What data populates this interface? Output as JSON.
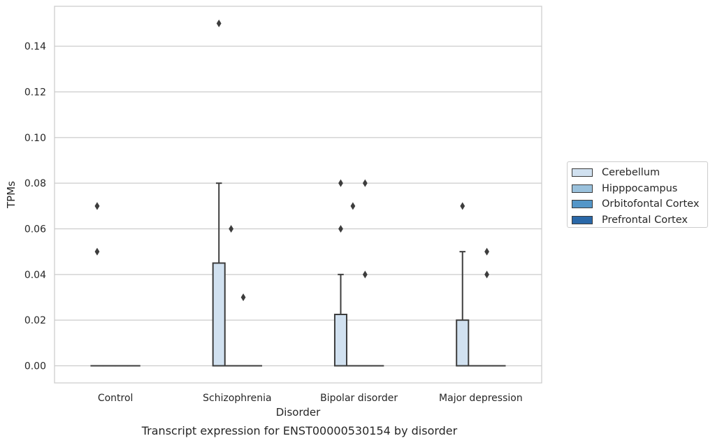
{
  "chart_data": {
    "type": "box",
    "title": "",
    "caption": "Transcript expression for ENST00000530154 by disorder",
    "xlabel": "Disorder",
    "ylabel": "TPMs",
    "ylim": [
      -0.0075,
      0.1575
    ],
    "yticks": [
      "0.00",
      "0.02",
      "0.04",
      "0.06",
      "0.08",
      "0.10",
      "0.12",
      "0.14"
    ],
    "grid": true,
    "legend_position": "right",
    "categories": [
      "Control",
      "Schizophrenia",
      "Bipolar disorder",
      "Major depression"
    ],
    "series": [
      {
        "name": "Cerebellum",
        "color": "#d1e1f0",
        "boxes": [
          {
            "q1": 0,
            "median": 0,
            "q3": 0,
            "whislo": 0,
            "whishi": 0,
            "fliers": [
              0.05,
              0.07,
              0.07
            ]
          },
          {
            "q1": 0,
            "median": 0,
            "q3": 0.045,
            "whislo": 0,
            "whishi": 0.08,
            "fliers": [
              0.15
            ]
          },
          {
            "q1": 0,
            "median": 0,
            "q3": 0.0225,
            "whislo": 0,
            "whishi": 0.04,
            "fliers": [
              0.06,
              0.08
            ]
          },
          {
            "q1": 0,
            "median": 0,
            "q3": 0.02,
            "whislo": 0,
            "whishi": 0.05,
            "fliers": [
              0.07
            ]
          }
        ]
      },
      {
        "name": "Hipppocampus",
        "color": "#9ac1dc",
        "boxes": [
          {
            "q1": 0,
            "median": 0,
            "q3": 0,
            "whislo": 0,
            "whishi": 0,
            "fliers": []
          },
          {
            "q1": 0,
            "median": 0,
            "q3": 0,
            "whislo": 0,
            "whishi": 0,
            "fliers": [
              0.06
            ]
          },
          {
            "q1": 0,
            "median": 0,
            "q3": 0,
            "whislo": 0,
            "whishi": 0,
            "fliers": [
              0.07
            ]
          },
          {
            "q1": 0,
            "median": 0,
            "q3": 0,
            "whislo": 0,
            "whishi": 0,
            "fliers": []
          }
        ]
      },
      {
        "name": "Orbitofontal Cortex",
        "color": "#5496c8",
        "boxes": [
          {
            "q1": 0,
            "median": 0,
            "q3": 0,
            "whislo": 0,
            "whishi": 0,
            "fliers": []
          },
          {
            "q1": 0,
            "median": 0,
            "q3": 0,
            "whislo": 0,
            "whishi": 0,
            "fliers": [
              0.03
            ]
          },
          {
            "q1": 0,
            "median": 0,
            "q3": 0,
            "whislo": 0,
            "whishi": 0,
            "fliers": [
              0.04,
              0.08
            ]
          },
          {
            "q1": 0,
            "median": 0,
            "q3": 0,
            "whislo": 0,
            "whishi": 0,
            "fliers": [
              0.04,
              0.05
            ]
          }
        ]
      },
      {
        "name": "Prefrontal Cortex",
        "color": "#2a68a8",
        "boxes": [
          {
            "q1": 0,
            "median": 0,
            "q3": 0,
            "whislo": 0,
            "whishi": 0,
            "fliers": []
          },
          {
            "q1": 0,
            "median": 0,
            "q3": 0,
            "whislo": 0,
            "whishi": 0,
            "fliers": []
          },
          {
            "q1": 0,
            "median": 0,
            "q3": 0,
            "whislo": 0,
            "whishi": 0,
            "fliers": []
          },
          {
            "q1": 0,
            "median": 0,
            "q3": 0,
            "whislo": 0,
            "whishi": 0,
            "fliers": []
          }
        ]
      }
    ]
  }
}
